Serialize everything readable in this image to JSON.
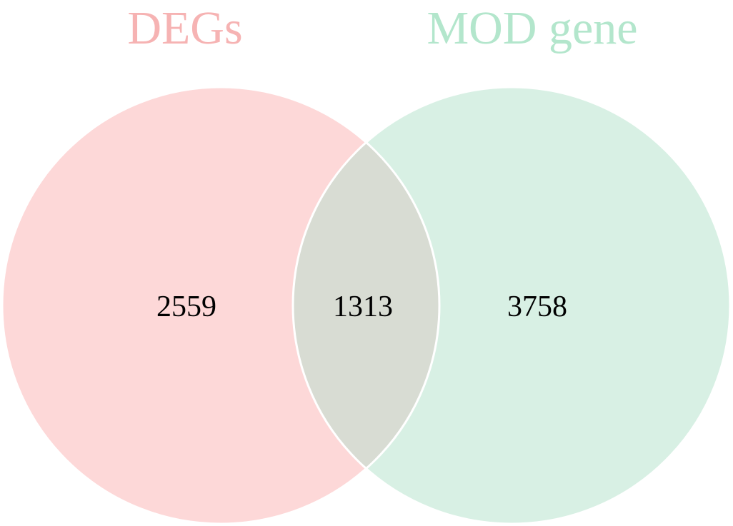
{
  "diagram": {
    "type": "venn",
    "sets": [
      {
        "name": "DEGs",
        "only_count": "2559",
        "fill_color": "#FDD8D8",
        "title_color": "#F6B3B3"
      },
      {
        "name": "MOD gene",
        "only_count": "3758",
        "fill_color": "#D8F0E4",
        "title_color": "#B3E6CC"
      }
    ],
    "intersection": {
      "count": "1313",
      "fill_color": "#D8DCD3"
    },
    "outline_color": "#FFFFFF"
  }
}
